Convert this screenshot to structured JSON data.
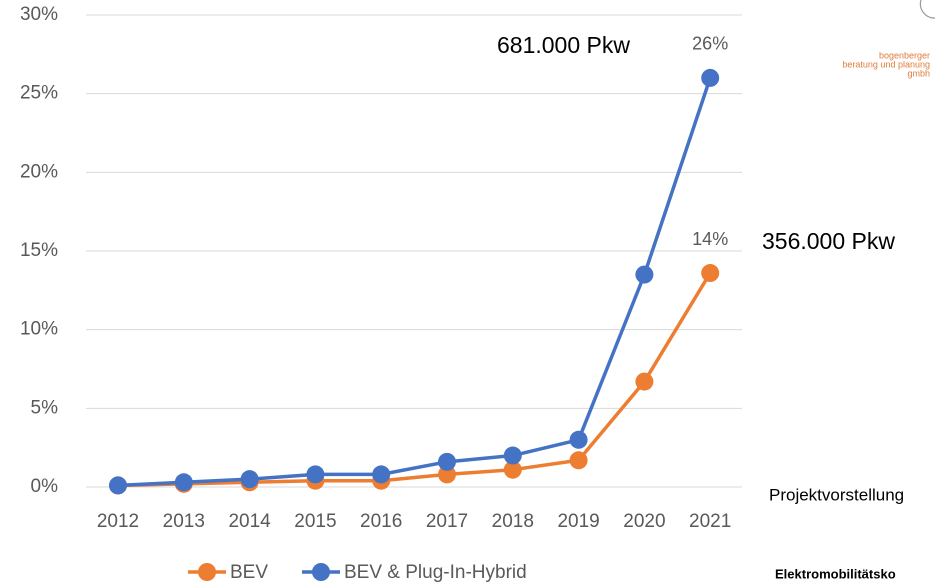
{
  "chart_data": {
    "type": "line",
    "categories": [
      "2012",
      "2013",
      "2014",
      "2015",
      "2016",
      "2017",
      "2018",
      "2019",
      "2020",
      "2021"
    ],
    "series": [
      {
        "name": "BEV",
        "color": "#ed7d31",
        "values": [
          0.1,
          0.2,
          0.3,
          0.4,
          0.4,
          0.8,
          1.1,
          1.7,
          6.7,
          13.6
        ],
        "value_labels": [
          null,
          null,
          null,
          null,
          null,
          null,
          null,
          null,
          null,
          "14%"
        ]
      },
      {
        "name": "BEV & Plug-In-Hybrid",
        "color": "#4472c4",
        "values": [
          0.1,
          0.3,
          0.5,
          0.8,
          0.8,
          1.6,
          2.0,
          3.0,
          13.5,
          26.0
        ],
        "value_labels": [
          null,
          null,
          null,
          null,
          null,
          null,
          null,
          null,
          null,
          "26%"
        ]
      }
    ],
    "ylim": [
      0,
      30
    ],
    "yticks": [
      {
        "value": 0,
        "label": "0%"
      },
      {
        "value": 5,
        "label": "5%"
      },
      {
        "value": 10,
        "label": "10%"
      },
      {
        "value": 15,
        "label": "15%"
      },
      {
        "value": 20,
        "label": "20%"
      },
      {
        "value": 25,
        "label": "25%"
      },
      {
        "value": 30,
        "label": "30%"
      }
    ],
    "grid": true,
    "legend": "bottom",
    "annotations": [
      "681.000 Pkw",
      "356.000 Pkw",
      "Projektvorstellung",
      "Elektromobilitätsko",
      "bogenberger",
      "beratung und planung",
      "gmbh"
    ]
  }
}
